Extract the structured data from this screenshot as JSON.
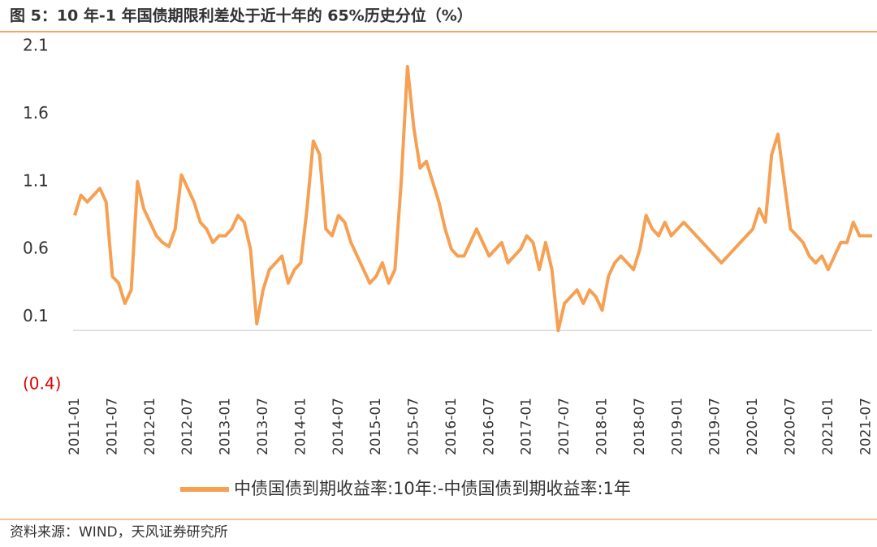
{
  "chart_data": {
    "type": "line",
    "title": "图 5：10 年-1 年国债期限利差处于近十年的 65%历史分位（%）",
    "source": "资料来源：WIND，天风证券研究所",
    "x": [
      "2011-01",
      "2011-02",
      "2011-03",
      "2011-04",
      "2011-05",
      "2011-06",
      "2011-07",
      "2011-08",
      "2011-09",
      "2011-10",
      "2011-11",
      "2011-12",
      "2012-01",
      "2012-02",
      "2012-03",
      "2012-04",
      "2012-05",
      "2012-06",
      "2012-07",
      "2012-08",
      "2012-09",
      "2012-10",
      "2012-11",
      "2012-12",
      "2013-01",
      "2013-02",
      "2013-03",
      "2013-04",
      "2013-05",
      "2013-06",
      "2013-07",
      "2013-08",
      "2013-09",
      "2013-10",
      "2013-11",
      "2013-12",
      "2014-01",
      "2014-02",
      "2014-03",
      "2014-04",
      "2014-05",
      "2014-06",
      "2014-07",
      "2014-08",
      "2014-09",
      "2014-10",
      "2014-11",
      "2014-12",
      "2015-01",
      "2015-02",
      "2015-03",
      "2015-04",
      "2015-05",
      "2015-06",
      "2015-07",
      "2015-08",
      "2015-09",
      "2015-10",
      "2015-11",
      "2015-12",
      "2016-01",
      "2016-02",
      "2016-03",
      "2016-04",
      "2016-05",
      "2016-06",
      "2016-07",
      "2016-08",
      "2016-09",
      "2016-10",
      "2016-11",
      "2016-12",
      "2017-01",
      "2017-02",
      "2017-03",
      "2017-04",
      "2017-05",
      "2017-06",
      "2017-07",
      "2017-08",
      "2017-09",
      "2017-10",
      "2017-11",
      "2017-12",
      "2018-01",
      "2018-02",
      "2018-03",
      "2018-04",
      "2018-05",
      "2018-06",
      "2018-07",
      "2018-08",
      "2018-09",
      "2018-10",
      "2018-11",
      "2018-12",
      "2019-01",
      "2019-02",
      "2019-03",
      "2019-04",
      "2019-05",
      "2019-06",
      "2019-07",
      "2019-08",
      "2019-09",
      "2019-10",
      "2019-11",
      "2019-12",
      "2020-01",
      "2020-02",
      "2020-03",
      "2020-04",
      "2020-05",
      "2020-06",
      "2020-07",
      "2020-08",
      "2020-09",
      "2020-10",
      "2020-11",
      "2020-12",
      "2021-01",
      "2021-02",
      "2021-03",
      "2021-04",
      "2021-05",
      "2021-06",
      "2021-07",
      "2021-08"
    ],
    "series": [
      {
        "name": "中债国债到期收益率:10年:-中债国债到期收益率:1年",
        "color": "#f5a052",
        "values": [
          0.85,
          1.0,
          0.95,
          1.0,
          1.05,
          0.95,
          0.4,
          0.35,
          0.2,
          0.3,
          1.1,
          0.9,
          0.8,
          0.7,
          0.65,
          0.62,
          0.75,
          1.15,
          1.05,
          0.95,
          0.8,
          0.75,
          0.65,
          0.7,
          0.7,
          0.75,
          0.85,
          0.8,
          0.6,
          0.05,
          0.3,
          0.45,
          0.5,
          0.55,
          0.35,
          0.45,
          0.5,
          0.9,
          1.4,
          1.3,
          0.75,
          0.7,
          0.85,
          0.8,
          0.65,
          0.55,
          0.45,
          0.35,
          0.4,
          0.5,
          0.35,
          0.45,
          1.1,
          1.95,
          1.5,
          1.2,
          1.25,
          1.1,
          0.95,
          0.75,
          0.6,
          0.55,
          0.55,
          0.65,
          0.75,
          0.65,
          0.55,
          0.6,
          0.65,
          0.5,
          0.55,
          0.6,
          0.7,
          0.65,
          0.45,
          0.65,
          0.45,
          0.0,
          0.2,
          0.25,
          0.3,
          0.2,
          0.3,
          0.25,
          0.15,
          0.4,
          0.5,
          0.55,
          0.5,
          0.45,
          0.6,
          0.85,
          0.75,
          0.7,
          0.8,
          0.7,
          0.75,
          0.8,
          0.75,
          0.7,
          0.65,
          0.6,
          0.55,
          0.5,
          0.55,
          0.6,
          0.65,
          0.7,
          0.75,
          0.9,
          0.8,
          1.3,
          1.45,
          1.1,
          0.75,
          0.7,
          0.65,
          0.55,
          0.5,
          0.55,
          0.45,
          0.55,
          0.65,
          0.65,
          0.8,
          0.7,
          0.7,
          0.7
        ]
      }
    ],
    "ylim": [
      -0.4,
      2.1
    ],
    "yticks": [
      2.1,
      1.6,
      1.1,
      0.6,
      0.1,
      {
        "value": -0.4,
        "label": "(0.4)"
      }
    ],
    "negative_tick_color": "#e00000",
    "xtick_every": 6,
    "rule_color": "#e8883a"
  }
}
